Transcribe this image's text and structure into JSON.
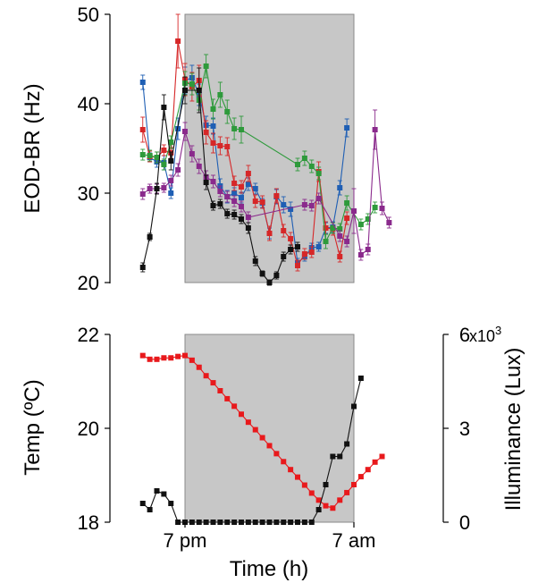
{
  "chart_data": [
    {
      "type": "line",
      "ylabel": "EOD-BR (Hz)",
      "ylim": [
        20,
        50
      ],
      "yticks": [
        20,
        30,
        40,
        50
      ],
      "x_range_h": [
        -3.5,
        14.5
      ],
      "shaded_region": [
        0,
        12
      ],
      "series": [
        {
          "color": "#1f5fb4",
          "values": [
            42.4,
            34,
            33.5,
            33.4,
            30,
            37.2,
            42.6,
            42.9,
            41,
            37.6,
            37.5,
            30.8,
            29.6,
            30,
            29.5,
            31,
            30.5,
            28.9,
            25.5,
            29.6,
            28.7,
            28.2,
            22.2,
            22.9,
            23.9,
            24,
            26.1,
            26.2,
            30.6,
            37.3
          ],
          "errors": [
            0.8,
            0.5,
            0.6,
            0.8,
            0.6,
            1.2,
            1.5,
            1.4,
            1.2,
            1,
            0.9,
            0.8,
            0.7,
            0.6,
            0.6,
            0.7,
            0.6,
            0.5,
            0.6,
            0.8,
            0.9,
            0.8,
            0.5,
            0.5,
            0.5,
            0.5,
            0.6,
            0.6,
            0.8,
            1
          ]
        },
        {
          "color": "#d62728",
          "values": [
            37.1,
            34.1,
            34,
            34.8,
            34.5,
            47,
            42.7,
            41.9,
            42.6,
            36.8,
            35.6,
            35.3,
            35.2,
            31.1,
            30.7,
            32.2,
            29.1,
            29,
            25.5,
            29.7,
            25.8,
            24.9,
            21.9,
            23.2,
            23.4,
            32.4,
            26.1,
            26,
            22.9,
            27.2
          ],
          "errors": [
            1.4,
            0.6,
            0.6,
            0.6,
            0.6,
            3,
            1.8,
            1.6,
            1.7,
            1.3,
            1.1,
            1,
            1,
            0.8,
            0.7,
            0.9,
            0.7,
            0.7,
            0.8,
            0.8,
            0.7,
            0.7,
            0.6,
            0.6,
            0.6,
            1.1,
            0.7,
            0.7,
            0.6,
            0.7
          ]
        },
        {
          "color": "#2e9a3b",
          "values": [
            34.3,
            34.2,
            34,
            33.2,
            35.7,
            42.3,
            42.2,
            40.4,
            44.2,
            39.4,
            41,
            39.1,
            37.2,
            37.1,
            33.2,
            33.9,
            33,
            32.2,
            24.6,
            26.1,
            26,
            28.9,
            26.5,
            27.1,
            28.4
          ],
          "errors": [
            0.6,
            0.6,
            0.6,
            0.6,
            0.7,
            1.3,
            1.2,
            1.1,
            1.3,
            1.1,
            1.4,
            1.3,
            1.2,
            1.5,
            0.7,
            0.8,
            0.7,
            0.7,
            0.8,
            0.6,
            0.6,
            0.8,
            0.6,
            0.6,
            0.6
          ],
          "x_h": [
            -3,
            -2.5,
            -2,
            -1.5,
            -1,
            0,
            0.5,
            1,
            1.5,
            2,
            2.5,
            3,
            3.5,
            4,
            8,
            8.5,
            9,
            9.5,
            10,
            10.5,
            11,
            11.5,
            12.5,
            13,
            13.5
          ]
        },
        {
          "color": "#8a2a8c",
          "values": [
            29.9,
            30.5,
            30.5,
            30.6,
            31.4,
            32.6,
            36.9,
            34.4,
            33,
            31.8,
            31.3,
            30.2,
            29.6,
            29.1,
            28.5,
            27.3,
            28.7,
            28.6,
            29.4,
            25.2,
            24.6,
            28,
            23.1,
            23.7,
            37.1,
            28.3,
            26.7
          ],
          "errors": [
            0.6,
            0.5,
            0.5,
            0.5,
            0.6,
            0.7,
            1,
            0.9,
            0.8,
            0.7,
            0.7,
            0.6,
            0.6,
            0.6,
            0.6,
            0.6,
            0.6,
            0.6,
            0.6,
            0.6,
            0.6,
            2.5,
            0.6,
            0.6,
            2.2,
            0.7,
            0.6
          ],
          "x_h": [
            -3,
            -2.5,
            -2,
            -1.5,
            -1,
            -0.5,
            0,
            0.5,
            1,
            1.5,
            2,
            2.5,
            3,
            3.5,
            4,
            4.5,
            8.5,
            9,
            9.5,
            11,
            11.5,
            12,
            12.5,
            13,
            13.5,
            14,
            14.5
          ]
        },
        {
          "color": "#111111",
          "values": [
            21.7,
            25.1,
            30.5,
            39.6,
            33.6,
            41.5,
            41.5,
            31.2,
            28.6,
            28.8,
            27.7,
            27.6,
            27.1,
            26.1,
            22.4,
            21,
            20,
            20.8,
            22.9,
            23.7,
            24
          ],
          "errors": [
            0.5,
            0.4,
            0.6,
            1.4,
            1,
            1.5,
            2.5,
            0.8,
            0.5,
            0.5,
            0.5,
            0.5,
            0.5,
            0.6,
            0.5,
            0.3,
            0.3,
            0.4,
            0.5,
            0.5,
            0.5
          ],
          "x_h": [
            -3,
            -2.5,
            -2,
            -1.5,
            -1,
            0,
            1,
            1.5,
            2,
            2.5,
            3,
            3.5,
            4,
            4.5,
            5,
            5.5,
            6,
            6.5,
            7,
            7.5,
            8
          ]
        }
      ]
    },
    {
      "type": "line",
      "xlabel": "Time (h)",
      "ylabel": "Temp (ºC)",
      "ylabel_right": "Illuminance (Lux)",
      "ylim": [
        18,
        22
      ],
      "yticks": [
        18,
        20,
        22
      ],
      "ylim_right": [
        0,
        6
      ],
      "yticks_right": [
        0,
        3,
        6
      ],
      "right_multiplier": "x10",
      "right_multiplier_exp": "3",
      "xtick_labels": [
        "7 pm",
        "7 am"
      ],
      "shaded_region": [
        0,
        12
      ],
      "series": [
        {
          "color": "#e8191c",
          "axis": "left",
          "values": [
            21.55,
            21.47,
            21.47,
            21.5,
            21.5,
            21.53,
            21.55,
            21.45,
            21.3,
            21.12,
            20.97,
            20.8,
            20.63,
            20.47,
            20.3,
            20.13,
            19.97,
            19.8,
            19.63,
            19.46,
            19.29,
            19.12,
            18.96,
            18.79,
            18.62,
            18.47,
            18.35,
            18.3,
            18.47,
            18.63,
            18.8,
            18.97,
            19.12,
            19.28,
            19.4
          ],
          "x_h": [
            -3,
            -2.5,
            -2,
            -1.5,
            -1,
            -0.5,
            0,
            0.5,
            1,
            1.5,
            2,
            2.5,
            3,
            3.5,
            4,
            4.5,
            5,
            5.5,
            6,
            6.5,
            7,
            7.5,
            8,
            8.5,
            9,
            9.5,
            10,
            10.5,
            11,
            11.5,
            12,
            12.5,
            13,
            13.5,
            14
          ]
        },
        {
          "color": "#111111",
          "axis": "right",
          "values": [
            0.6,
            0.4,
            1,
            0.9,
            0.6,
            0,
            0,
            0,
            0,
            0,
            0,
            0,
            0,
            0,
            0,
            0,
            0,
            0,
            0,
            0,
            0,
            0,
            0,
            0,
            0,
            0.4,
            1.2,
            2.1,
            2.1,
            2.5,
            3.7,
            4.6
          ],
          "x_h": [
            -3,
            -2.5,
            -2,
            -1.5,
            -1,
            -0.5,
            0,
            0.5,
            1,
            1.5,
            2,
            2.5,
            3,
            3.5,
            4,
            4.5,
            5,
            5.5,
            6,
            6.5,
            7,
            7.5,
            8,
            8.5,
            9,
            9.5,
            10,
            10.5,
            11,
            11.5,
            12,
            12.5
          ]
        }
      ]
    }
  ]
}
